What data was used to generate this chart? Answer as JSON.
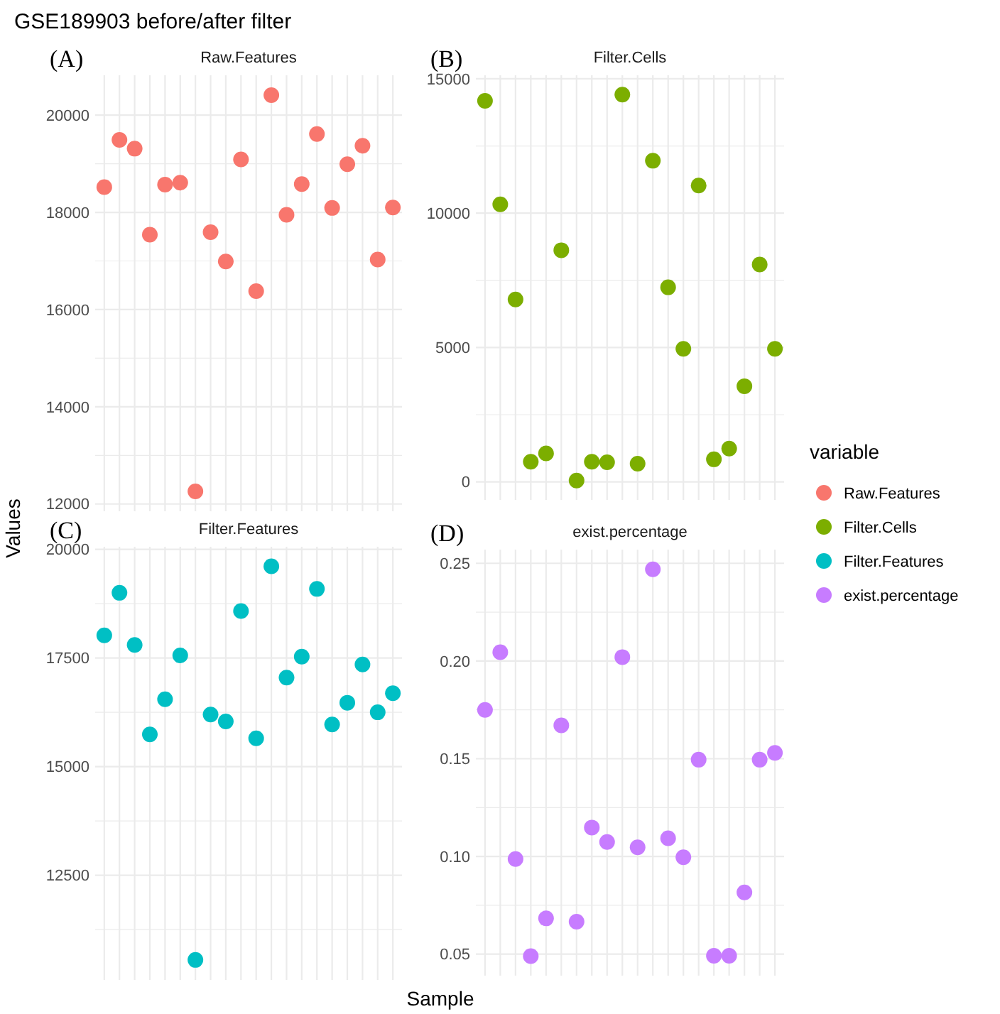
{
  "chart_data": [
    {
      "type": "scatter",
      "title": "Raw.Features",
      "annotations": [
        "(A)",
        "GSE189903 before/after filter"
      ],
      "xlabel": "Sample",
      "ylabel": "Values",
      "legend_title": "variable",
      "legend": "right",
      "grid": true,
      "marker": "circle",
      "tick_labels": "y",
      "categories": [
        null,
        null,
        null,
        null,
        null,
        null,
        null,
        null,
        null,
        null,
        null,
        null,
        null,
        null,
        null,
        null,
        null,
        null,
        null,
        null
      ],
      "ylim": [
        11850,
        20820
      ],
      "yticks": [
        12000,
        {
          "value": 13000,
          "label": null
        },
        14000,
        {
          "value": 15000,
          "label": null
        },
        16000,
        {
          "value": 17000,
          "label": null
        },
        18000,
        {
          "value": 19000,
          "label": null
        },
        20000
      ],
      "series": [
        {
          "name": "Raw.Features",
          "color": "#f8766d",
          "values": [
            18520,
            19490,
            19310,
            17540,
            18570,
            18610,
            12260,
            17590,
            16990,
            19090,
            16380,
            20410,
            17950,
            18580,
            19610,
            18090,
            18990,
            19370,
            17030,
            18100
          ]
        }
      ]
    },
    {
      "type": "scatter",
      "title": "Filter.Cells",
      "annotations": [
        "(B)"
      ],
      "legend": "right",
      "grid": true,
      "marker": "circle",
      "tick_labels": "y",
      "categories": [
        null,
        null,
        null,
        null,
        null,
        null,
        null,
        null,
        null,
        null,
        null,
        null,
        null,
        null,
        null,
        null,
        null,
        null,
        null,
        null
      ],
      "ylim": [
        -670,
        15130
      ],
      "yticks": [
        0,
        {
          "value": 2500,
          "label": null
        },
        5000,
        {
          "value": 7500,
          "label": null
        },
        10000,
        {
          "value": 12500,
          "label": null
        },
        15000
      ],
      "series": [
        {
          "name": "Filter.Cells",
          "color": "#7cae00",
          "values": [
            14180,
            10330,
            6790,
            750,
            1060,
            8620,
            50,
            750,
            730,
            14410,
            680,
            11950,
            7240,
            4950,
            11030,
            840,
            1240,
            3560,
            8090,
            4950
          ]
        }
      ]
    },
    {
      "type": "scatter",
      "title": "Filter.Features",
      "annotations": [
        "(C)"
      ],
      "legend": "right",
      "grid": true,
      "marker": "circle",
      "tick_labels": "y",
      "categories": [
        null,
        null,
        null,
        null,
        null,
        null,
        null,
        null,
        null,
        null,
        null,
        null,
        null,
        null,
        null,
        null,
        null,
        null,
        null,
        null
      ],
      "ylim": [
        10090,
        20060
      ],
      "yticks": [
        {
          "value": 11250,
          "label": null
        },
        12500,
        {
          "value": 13750,
          "label": null
        },
        15000,
        {
          "value": 16250,
          "label": null
        },
        17500,
        {
          "value": 18750,
          "label": null
        },
        20000
      ],
      "series": [
        {
          "name": "Filter.Features",
          "color": "#00bfc4",
          "values": [
            18020,
            19000,
            17800,
            15740,
            16550,
            17560,
            10550,
            16200,
            16040,
            18580,
            15650,
            19610,
            17050,
            17530,
            19090,
            15970,
            16470,
            17350,
            16250,
            16690
          ]
        }
      ]
    },
    {
      "type": "scatter",
      "title": "exist.percentage",
      "annotations": [
        "(D)"
      ],
      "legend": "right",
      "grid": true,
      "marker": "circle",
      "tick_labels": "y",
      "categories": [
        null,
        null,
        null,
        null,
        null,
        null,
        null,
        null,
        null,
        null,
        null,
        null,
        null,
        null,
        null,
        null,
        null,
        null,
        null,
        null
      ],
      "ylim": [
        0.039,
        0.257
      ],
      "yticks": [
        0.05,
        {
          "value": 0.075,
          "label": null
        },
        "0.10",
        {
          "value": 0.125,
          "label": null
        },
        0.15,
        {
          "value": 0.175,
          "label": null
        },
        "0.20",
        {
          "value": 0.225,
          "label": null
        },
        0.25
      ],
      "series": [
        {
          "name": "exist.percentage",
          "color": "#c77cff",
          "values": [
            0.175,
            0.2045,
            0.0987,
            0.049,
            0.0683,
            0.1671,
            0.0666,
            0.1148,
            0.1074,
            0.202,
            0.1047,
            0.2469,
            0.1093,
            0.0996,
            0.1495,
            0.0492,
            0.0492,
            0.0816,
            0.1495,
            0.153
          ]
        }
      ]
    }
  ]
}
